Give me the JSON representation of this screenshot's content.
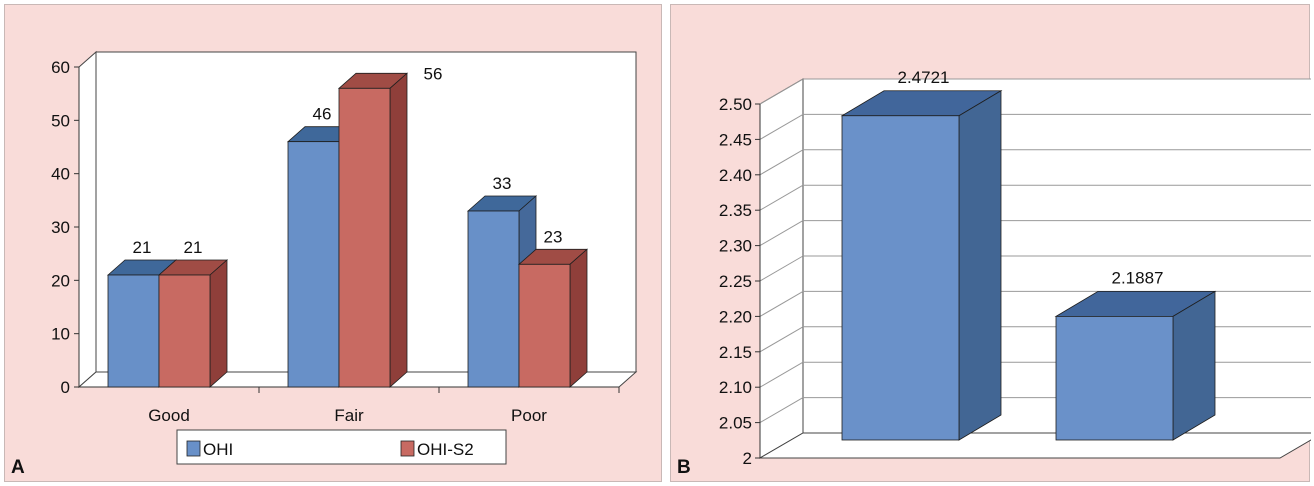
{
  "panels": [
    {
      "label": "A"
    },
    {
      "label": "B"
    }
  ],
  "colors": {
    "ohi_front": "#6890c8",
    "ohi_side": "#45699a",
    "ohi_top": "#3f689a",
    "ohis2_front": "#c86a62",
    "ohis2_side": "#8f3f3a",
    "ohis2_top": "#a04c45",
    "b_front": "#6a91c9",
    "b_side": "#426694",
    "b_top": "#41669b",
    "plot_bg": "#ffffff",
    "grid": "#999999",
    "axis": "#333333",
    "text": "#111111"
  },
  "chart_data": [
    {
      "type": "bar",
      "categories": [
        "Good",
        "Fair",
        "Poor"
      ],
      "series": [
        {
          "name": "OHI",
          "values": [
            21,
            46,
            33
          ],
          "labels": [
            "21",
            "46",
            "33"
          ]
        },
        {
          "name": "OHI-S2",
          "values": [
            21,
            56,
            23
          ],
          "labels": [
            "21",
            "56",
            "23"
          ]
        }
      ],
      "yticks": [
        "0",
        "10",
        "20",
        "30",
        "40",
        "50",
        "60"
      ],
      "ylim": [
        0,
        60
      ],
      "legend": "bottom",
      "grid": false,
      "three_d": true
    },
    {
      "type": "bar",
      "categories": [
        "",
        ""
      ],
      "values": [
        2.4721,
        2.1887
      ],
      "labels": [
        "2.4721",
        "2.1887"
      ],
      "yticks": [
        "2",
        "2.05",
        "2.10",
        "2.15",
        "2.20",
        "2.25",
        "2.30",
        "2.35",
        "2.40",
        "2.45",
        "2.50"
      ],
      "ylim": [
        2,
        2.5
      ],
      "legend": "none",
      "grid": true,
      "three_d": true
    }
  ]
}
